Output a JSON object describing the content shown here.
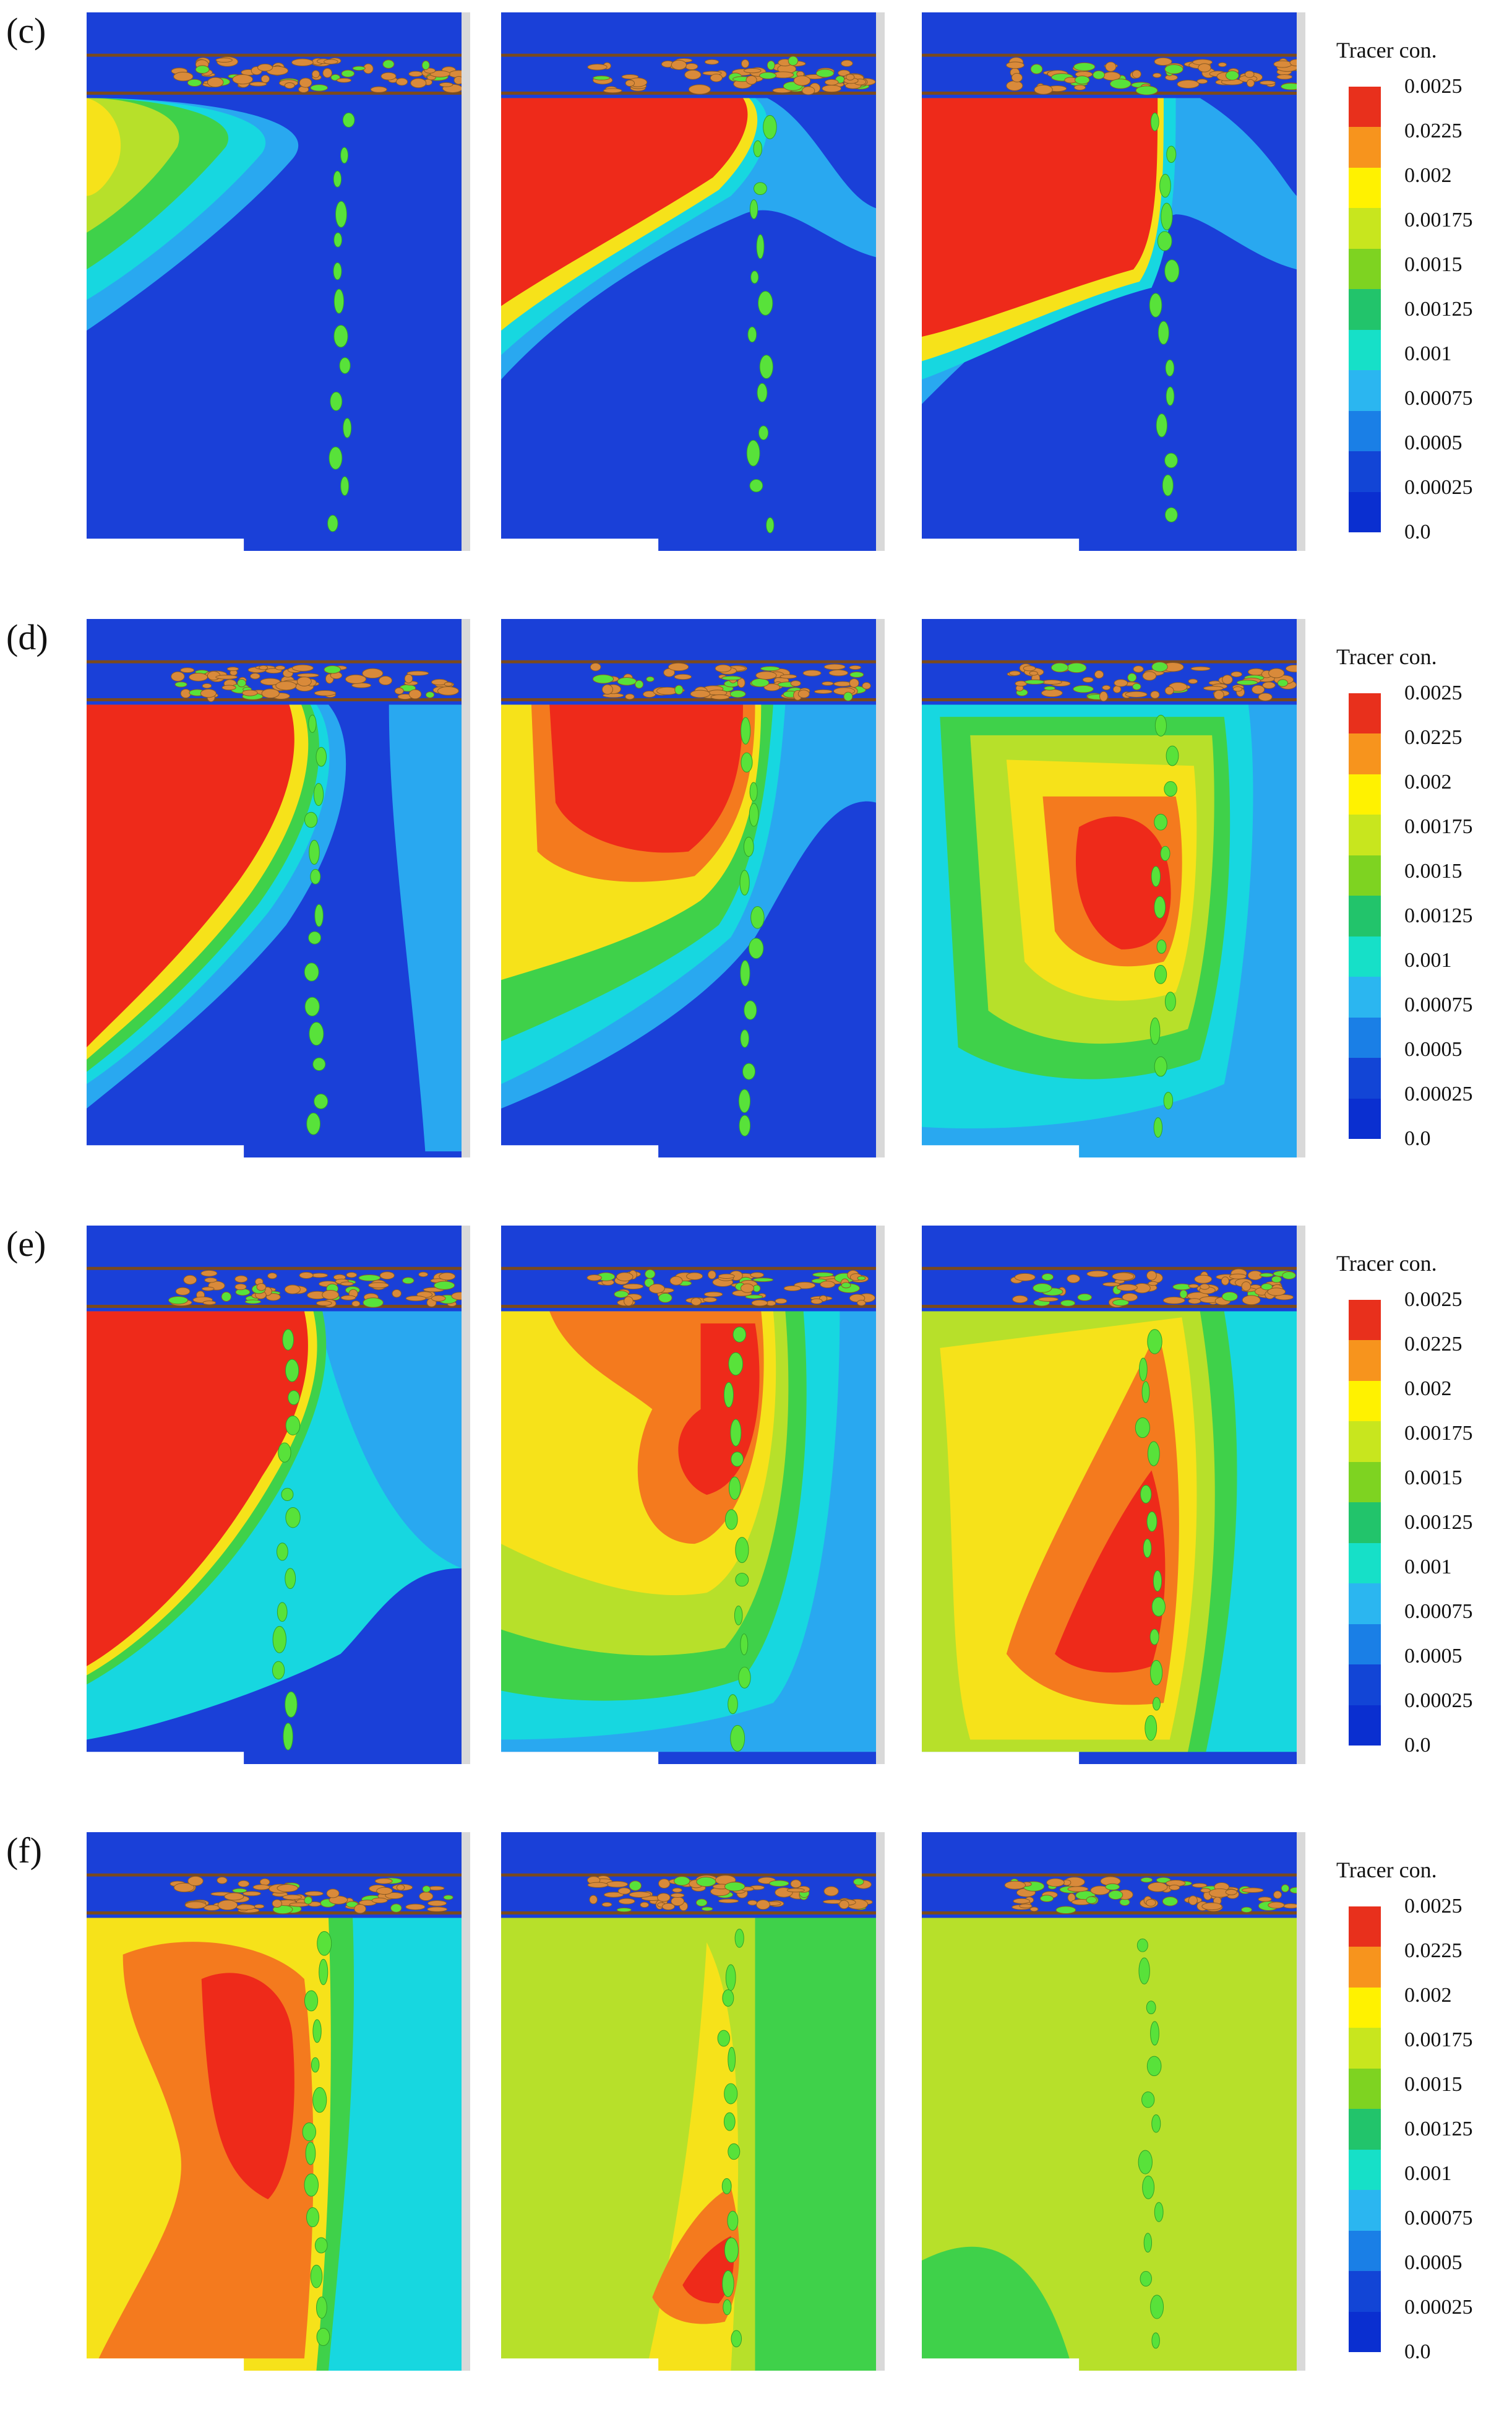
{
  "rows": [
    {
      "label": "(c)",
      "panels": [
        {
          "id": "c1"
        },
        {
          "id": "c2"
        },
        {
          "id": "c3"
        }
      ]
    },
    {
      "label": "(d)",
      "panels": [
        {
          "id": "d1"
        },
        {
          "id": "d2"
        },
        {
          "id": "d3"
        }
      ]
    },
    {
      "label": "(e)",
      "panels": [
        {
          "id": "e1"
        },
        {
          "id": "e2"
        },
        {
          "id": "e3"
        }
      ]
    },
    {
      "label": "(f)",
      "panels": [
        {
          "id": "f1"
        },
        {
          "id": "f2"
        },
        {
          "id": "f3"
        }
      ]
    }
  ],
  "legend": {
    "title": "Tracer con.",
    "ticks": [
      "0.0025",
      "0.0225",
      "0.002",
      "0.00175",
      "0.0015",
      "0.00125",
      "0.001",
      "0.00075",
      "0.0005",
      "0.00025",
      "0.0"
    ],
    "colors": [
      "#e8301c",
      "#f7941d",
      "#fff200",
      "#c8e61e",
      "#7ed321",
      "#22c46b",
      "#16e0c8",
      "#2bb6f0",
      "#1a7fe6",
      "#1245d6",
      "#0a2fd0"
    ]
  },
  "palette": {
    "red": "#ee2a1a",
    "orange": "#f47a1e",
    "yellow": "#f6e21a",
    "lime": "#b7e02a",
    "green": "#3fd14a",
    "cyan": "#17d7e0",
    "sky": "#29a8f0",
    "blue": "#1a40d8",
    "bubble": "#58e23a",
    "surface": "#d98a3a"
  }
}
